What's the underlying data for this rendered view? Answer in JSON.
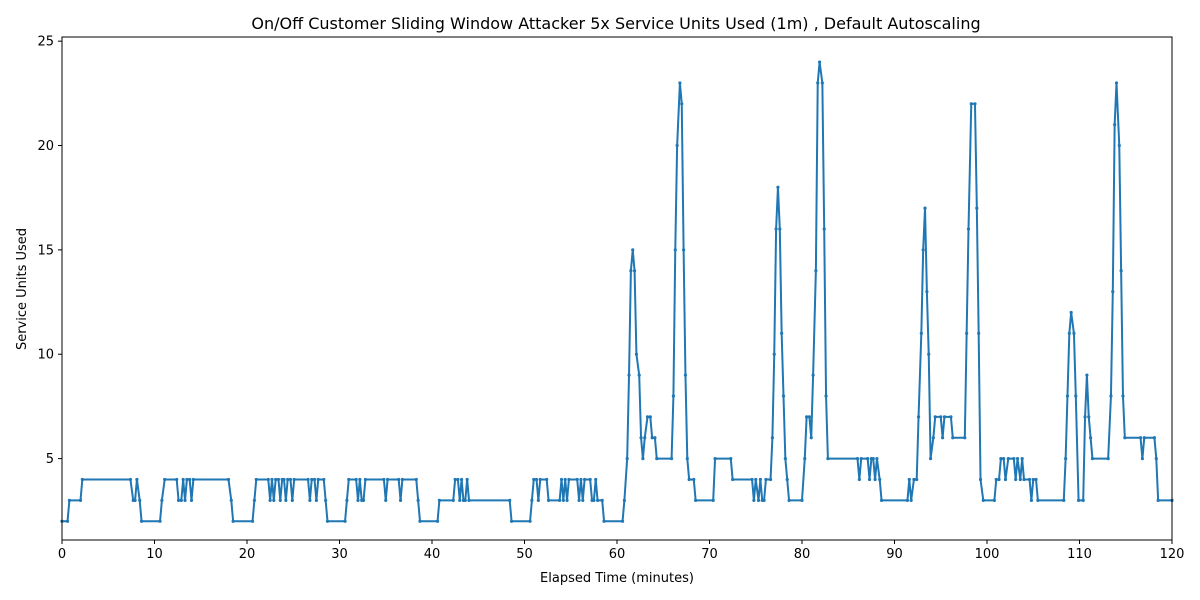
{
  "chart_data": {
    "type": "line",
    "title": "On/Off Customer Sliding Window Attacker 5x Service Units Used (1m) , Default Autoscaling",
    "xlabel": "Elapsed Time (minutes)",
    "ylabel": "Service Units Used",
    "xlim": [
      0,
      120
    ],
    "ylim": [
      1.1,
      25.2
    ],
    "x_ticks": [
      0,
      10,
      20,
      30,
      40,
      50,
      60,
      70,
      80,
      90,
      100,
      110,
      120
    ],
    "y_ticks": [
      5,
      10,
      15,
      20,
      25
    ],
    "grid": false,
    "line_color": "#1f77b4",
    "series": [
      {
        "points": [
          [
            0,
            2
          ],
          [
            0.6,
            2
          ],
          [
            0.8,
            3
          ],
          [
            2,
            3
          ],
          [
            2.2,
            4
          ],
          [
            7.4,
            4
          ],
          [
            7.7,
            3
          ],
          [
            7.9,
            3
          ],
          [
            8.1,
            4
          ],
          [
            8.4,
            3
          ],
          [
            8.6,
            2
          ],
          [
            10.6,
            2
          ],
          [
            10.8,
            3
          ],
          [
            11.1,
            4
          ],
          [
            12.4,
            4
          ],
          [
            12.6,
            3
          ],
          [
            12.9,
            3
          ],
          [
            13.1,
            4
          ],
          [
            13.3,
            3
          ],
          [
            13.5,
            4
          ],
          [
            13.8,
            4
          ],
          [
            14.0,
            3
          ],
          [
            14.2,
            4
          ],
          [
            18.0,
            4
          ],
          [
            18.3,
            3
          ],
          [
            18.5,
            2
          ],
          [
            20.6,
            2
          ],
          [
            20.8,
            3
          ],
          [
            21.0,
            4
          ],
          [
            22.3,
            4
          ],
          [
            22.5,
            3
          ],
          [
            22.7,
            4
          ],
          [
            22.9,
            3
          ],
          [
            23.1,
            4
          ],
          [
            23.4,
            4
          ],
          [
            23.6,
            3
          ],
          [
            23.8,
            4
          ],
          [
            24.0,
            4
          ],
          [
            24.2,
            3
          ],
          [
            24.4,
            4
          ],
          [
            24.7,
            4
          ],
          [
            24.9,
            3
          ],
          [
            25.1,
            4
          ],
          [
            26.6,
            4
          ],
          [
            26.8,
            3
          ],
          [
            27.0,
            4
          ],
          [
            27.3,
            4
          ],
          [
            27.5,
            3
          ],
          [
            27.7,
            4
          ],
          [
            28.3,
            4
          ],
          [
            28.5,
            3
          ],
          [
            28.7,
            2
          ],
          [
            30.6,
            2
          ],
          [
            30.8,
            3
          ],
          [
            31.0,
            4
          ],
          [
            31.8,
            4
          ],
          [
            32.0,
            3
          ],
          [
            32.2,
            4
          ],
          [
            32.4,
            3
          ],
          [
            32.6,
            3
          ],
          [
            32.8,
            4
          ],
          [
            34.8,
            4
          ],
          [
            35.0,
            3
          ],
          [
            35.2,
            4
          ],
          [
            36.4,
            4
          ],
          [
            36.6,
            3
          ],
          [
            36.8,
            4
          ],
          [
            38.3,
            4
          ],
          [
            38.5,
            3
          ],
          [
            38.7,
            2
          ],
          [
            40.6,
            2
          ],
          [
            40.8,
            3
          ],
          [
            42.3,
            3
          ],
          [
            42.5,
            4
          ],
          [
            42.8,
            4
          ],
          [
            43.0,
            3
          ],
          [
            43.2,
            4
          ],
          [
            43.4,
            3
          ],
          [
            43.6,
            3
          ],
          [
            43.8,
            4
          ],
          [
            44.0,
            3
          ],
          [
            48.4,
            3
          ],
          [
            48.6,
            2
          ],
          [
            50.6,
            2
          ],
          [
            50.8,
            3
          ],
          [
            51.0,
            4
          ],
          [
            51.3,
            4
          ],
          [
            51.5,
            3
          ],
          [
            51.7,
            4
          ],
          [
            52.4,
            4
          ],
          [
            52.6,
            3
          ],
          [
            53.8,
            3
          ],
          [
            54.0,
            4
          ],
          [
            54.2,
            3
          ],
          [
            54.4,
            4
          ],
          [
            54.6,
            3
          ],
          [
            54.8,
            4
          ],
          [
            55.7,
            4
          ],
          [
            55.9,
            3
          ],
          [
            56.1,
            4
          ],
          [
            56.3,
            3
          ],
          [
            56.5,
            4
          ],
          [
            57.1,
            4
          ],
          [
            57.3,
            3
          ],
          [
            57.5,
            3
          ],
          [
            57.7,
            4
          ],
          [
            57.9,
            3
          ],
          [
            58.4,
            3
          ],
          [
            58.6,
            2
          ],
          [
            60.6,
            2
          ],
          [
            60.8,
            3
          ],
          [
            61.1,
            5
          ],
          [
            61.3,
            9
          ],
          [
            61.5,
            14
          ],
          [
            61.7,
            15
          ],
          [
            61.9,
            14
          ],
          [
            62.1,
            10
          ],
          [
            62.4,
            9
          ],
          [
            62.6,
            6
          ],
          [
            62.8,
            5
          ],
          [
            63.0,
            6
          ],
          [
            63.3,
            7
          ],
          [
            63.6,
            7
          ],
          [
            63.8,
            6
          ],
          [
            64.1,
            6
          ],
          [
            64.3,
            5
          ],
          [
            65.9,
            5
          ],
          [
            66.1,
            8
          ],
          [
            66.3,
            15
          ],
          [
            66.5,
            20
          ],
          [
            66.8,
            23
          ],
          [
            67.0,
            22
          ],
          [
            67.2,
            15
          ],
          [
            67.4,
            9
          ],
          [
            67.6,
            5
          ],
          [
            67.8,
            4
          ],
          [
            68.3,
            4
          ],
          [
            68.5,
            3
          ],
          [
            70.4,
            3
          ],
          [
            70.6,
            5
          ],
          [
            72.3,
            5
          ],
          [
            72.5,
            4
          ],
          [
            74.6,
            4
          ],
          [
            74.8,
            3
          ],
          [
            75.0,
            4
          ],
          [
            75.3,
            3
          ],
          [
            75.5,
            4
          ],
          [
            75.7,
            3
          ],
          [
            75.9,
            3
          ],
          [
            76.1,
            4
          ],
          [
            76.6,
            4
          ],
          [
            76.8,
            6
          ],
          [
            77.0,
            10
          ],
          [
            77.2,
            16
          ],
          [
            77.4,
            18
          ],
          [
            77.6,
            16
          ],
          [
            77.8,
            11
          ],
          [
            78.0,
            8
          ],
          [
            78.2,
            5
          ],
          [
            78.4,
            4
          ],
          [
            78.6,
            3
          ],
          [
            80.0,
            3
          ],
          [
            80.3,
            5
          ],
          [
            80.5,
            7
          ],
          [
            80.8,
            7
          ],
          [
            81.0,
            6
          ],
          [
            81.2,
            9
          ],
          [
            81.5,
            14
          ],
          [
            81.7,
            23
          ],
          [
            81.9,
            24
          ],
          [
            82.2,
            23
          ],
          [
            82.4,
            16
          ],
          [
            82.6,
            8
          ],
          [
            82.8,
            5
          ],
          [
            86.0,
            5
          ],
          [
            86.2,
            4
          ],
          [
            86.4,
            5
          ],
          [
            87.1,
            5
          ],
          [
            87.3,
            4
          ],
          [
            87.5,
            5
          ],
          [
            87.7,
            5
          ],
          [
            87.9,
            4
          ],
          [
            88.1,
            5
          ],
          [
            88.4,
            4
          ],
          [
            88.6,
            3
          ],
          [
            91.4,
            3
          ],
          [
            91.6,
            4
          ],
          [
            91.8,
            3
          ],
          [
            92.1,
            4
          ],
          [
            92.4,
            4
          ],
          [
            92.6,
            7
          ],
          [
            92.9,
            11
          ],
          [
            93.1,
            15
          ],
          [
            93.3,
            17
          ],
          [
            93.5,
            13
          ],
          [
            93.7,
            10
          ],
          [
            93.9,
            5
          ],
          [
            94.2,
            6
          ],
          [
            94.4,
            7
          ],
          [
            95.0,
            7
          ],
          [
            95.2,
            6
          ],
          [
            95.4,
            7
          ],
          [
            96.1,
            7
          ],
          [
            96.3,
            6
          ],
          [
            97.6,
            6
          ],
          [
            97.8,
            11
          ],
          [
            98.0,
            16
          ],
          [
            98.3,
            22
          ],
          [
            98.7,
            22
          ],
          [
            98.9,
            17
          ],
          [
            99.1,
            11
          ],
          [
            99.3,
            4
          ],
          [
            99.6,
            3
          ],
          [
            100.8,
            3
          ],
          [
            101.0,
            4
          ],
          [
            101.3,
            4
          ],
          [
            101.5,
            5
          ],
          [
            101.8,
            5
          ],
          [
            102.0,
            4
          ],
          [
            102.3,
            5
          ],
          [
            102.9,
            5
          ],
          [
            103.1,
            4
          ],
          [
            103.3,
            5
          ],
          [
            103.6,
            4
          ],
          [
            103.8,
            5
          ],
          [
            104.0,
            4
          ],
          [
            104.6,
            4
          ],
          [
            104.8,
            3
          ],
          [
            105.0,
            4
          ],
          [
            105.3,
            4
          ],
          [
            105.5,
            3
          ],
          [
            108.3,
            3
          ],
          [
            108.5,
            5
          ],
          [
            108.7,
            8
          ],
          [
            108.9,
            11
          ],
          [
            109.1,
            12
          ],
          [
            109.4,
            11
          ],
          [
            109.6,
            8
          ],
          [
            109.9,
            3
          ],
          [
            110.4,
            3
          ],
          [
            110.6,
            7
          ],
          [
            110.8,
            9
          ],
          [
            111.0,
            7
          ],
          [
            111.2,
            6
          ],
          [
            111.4,
            5
          ],
          [
            113.1,
            5
          ],
          [
            113.4,
            8
          ],
          [
            113.6,
            13
          ],
          [
            113.8,
            21
          ],
          [
            114.0,
            23
          ],
          [
            114.3,
            20
          ],
          [
            114.5,
            14
          ],
          [
            114.7,
            8
          ],
          [
            114.9,
            6
          ],
          [
            116.6,
            6
          ],
          [
            116.8,
            5
          ],
          [
            117.0,
            6
          ],
          [
            118.1,
            6
          ],
          [
            118.3,
            5
          ],
          [
            118.5,
            3
          ],
          [
            120.0,
            3
          ]
        ]
      }
    ]
  }
}
